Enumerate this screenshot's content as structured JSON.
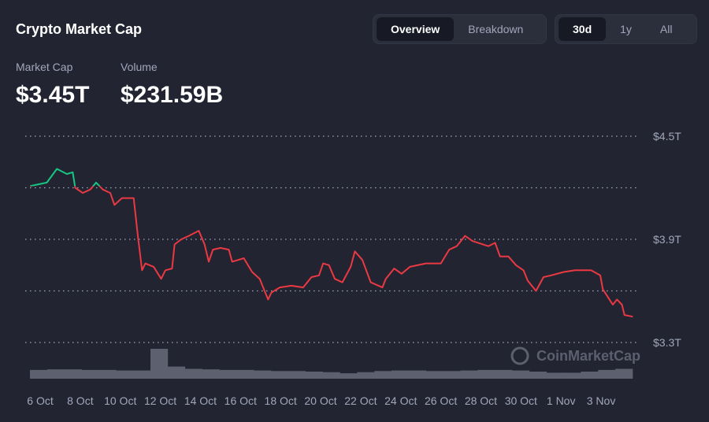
{
  "header": {
    "title": "Crypto Market Cap"
  },
  "view_toggle": {
    "options": [
      "Overview",
      "Breakdown"
    ],
    "active": "Overview"
  },
  "range_toggle": {
    "options": [
      "30d",
      "1y",
      "All"
    ],
    "active": "30d"
  },
  "stats": {
    "market_cap_label": "Market Cap",
    "market_cap_value": "$3.45T",
    "volume_label": "Volume",
    "volume_value": "$231.59B"
  },
  "watermark": "CoinMarketCap",
  "colors": {
    "up": "#16c784",
    "down": "#ea3943",
    "volume": "#5d616f",
    "grid": "#a1a7bb"
  },
  "chart_data": {
    "type": "line",
    "ylim": [
      3.3,
      4.5
    ],
    "y_ticks": [
      3.3,
      3.6,
      3.9,
      4.2,
      4.5
    ],
    "y_tick_labels": [
      {
        "value": 4.5,
        "label": "$4.5T"
      },
      {
        "value": 3.9,
        "label": "$3.9T"
      },
      {
        "value": 3.3,
        "label": "$3.3T"
      }
    ],
    "grid": true,
    "baseline": 4.21,
    "x_tick_labels": [
      "6 Oct",
      "8 Oct",
      "10 Oct",
      "12 Oct",
      "14 Oct",
      "16 Oct",
      "18 Oct",
      "20 Oct",
      "22 Oct",
      "24 Oct",
      "26 Oct",
      "28 Oct",
      "30 Oct",
      "1 Nov",
      "3 Nov"
    ],
    "series": [
      {
        "values": [
          [
            "Oct 5 12:00",
            4.21
          ],
          [
            "Oct 6 08:00",
            4.23
          ],
          [
            "Oct 6 20:00",
            4.31
          ],
          [
            "Oct 7 08:00",
            4.28
          ],
          [
            "Oct 7 15:00",
            4.29
          ],
          [
            "Oct 7 18:00",
            4.2
          ],
          [
            "Oct 8 03:00",
            4.17
          ],
          [
            "Oct 8 12:00",
            4.19
          ],
          [
            "Oct 8 19:00",
            4.23
          ],
          [
            "Oct 9 03:00",
            4.19
          ],
          [
            "Oct 9 12:00",
            4.17
          ],
          [
            "Oct 9 17:00",
            4.1
          ],
          [
            "Oct 10 02:00",
            4.14
          ],
          [
            "Oct 10 16:00",
            4.14
          ],
          [
            "Oct 10 21:00",
            3.92
          ],
          [
            "Oct 11 02:00",
            3.72
          ],
          [
            "Oct 11 06:00",
            3.76
          ],
          [
            "Oct 11 16:00",
            3.74
          ],
          [
            "Oct 12 01:00",
            3.67
          ],
          [
            "Oct 12 06:00",
            3.72
          ],
          [
            "Oct 12 14:00",
            3.73
          ],
          [
            "Oct 12 17:00",
            3.87
          ],
          [
            "Oct 13 01:00",
            3.9
          ],
          [
            "Oct 13 10:00",
            3.92
          ],
          [
            "Oct 13 22:00",
            3.95
          ],
          [
            "Oct 14 05:00",
            3.87
          ],
          [
            "Oct 14 10:00",
            3.77
          ],
          [
            "Oct 14 15:00",
            3.84
          ],
          [
            "Oct 15 00:00",
            3.85
          ],
          [
            "Oct 15 10:00",
            3.84
          ],
          [
            "Oct 15 14:00",
            3.77
          ],
          [
            "Oct 16 04:00",
            3.79
          ],
          [
            "Oct 16 14:00",
            3.71
          ],
          [
            "Oct 16 23:00",
            3.67
          ],
          [
            "Oct 17 09:00",
            3.55
          ],
          [
            "Oct 17 13:00",
            3.59
          ],
          [
            "Oct 17 23:00",
            3.62
          ],
          [
            "Oct 18 13:00",
            3.63
          ],
          [
            "Oct 19 03:00",
            3.62
          ],
          [
            "Oct 19 13:00",
            3.68
          ],
          [
            "Oct 19 22:00",
            3.69
          ],
          [
            "Oct 20 03:00",
            3.76
          ],
          [
            "Oct 20 10:00",
            3.75
          ],
          [
            "Oct 20 17:00",
            3.67
          ],
          [
            "Oct 21 02:00",
            3.65
          ],
          [
            "Oct 21 12:00",
            3.74
          ],
          [
            "Oct 21 17:00",
            3.83
          ],
          [
            "Oct 22 02:00",
            3.78
          ],
          [
            "Oct 22 12:00",
            3.65
          ],
          [
            "Oct 23 02:00",
            3.62
          ],
          [
            "Oct 23 06:00",
            3.67
          ],
          [
            "Oct 23 16:00",
            3.73
          ],
          [
            "Oct 24 01:00",
            3.7
          ],
          [
            "Oct 24 11:00",
            3.74
          ],
          [
            "Oct 25 06:00",
            3.76
          ],
          [
            "Oct 26 00:00",
            3.76
          ],
          [
            "Oct 26 10:00",
            3.84
          ],
          [
            "Oct 26 19:00",
            3.86
          ],
          [
            "Oct 27 05:00",
            3.92
          ],
          [
            "Oct 27 14:00",
            3.89
          ],
          [
            "Oct 28 09:00",
            3.86
          ],
          [
            "Oct 28 17:00",
            3.88
          ],
          [
            "Oct 28 23:00",
            3.8
          ],
          [
            "Oct 29 09:00",
            3.8
          ],
          [
            "Oct 29 18:00",
            3.75
          ],
          [
            "Oct 30 03:00",
            3.72
          ],
          [
            "Oct 30 08:00",
            3.66
          ],
          [
            "Oct 30 18:00",
            3.6
          ],
          [
            "Oct 31 03:00",
            3.68
          ],
          [
            "Oct 31 12:00",
            3.69
          ],
          [
            "Nov 1 03:00",
            3.71
          ],
          [
            "Nov 1 17:00",
            3.72
          ],
          [
            "Nov 2 12:00",
            3.72
          ],
          [
            "Nov 2 23:00",
            3.69
          ],
          [
            "Nov 3 02:00",
            3.61
          ],
          [
            "Nov 3 14:00",
            3.52
          ],
          [
            "Nov 3 19:00",
            3.55
          ],
          [
            "Nov 4 01:00",
            3.52
          ],
          [
            "Nov 4 04:00",
            3.46
          ],
          [
            "Nov 4 14:00",
            3.45
          ]
        ]
      }
    ],
    "volume_relative": [
      0.5,
      0.55,
      0.55,
      0.5,
      0.5,
      0.45,
      0.45,
      1.0,
      0.8,
      0.6,
      0.55,
      0.5,
      0.5,
      0.45,
      0.4,
      0.4,
      0.35,
      0.3,
      0.2,
      0.3,
      0.4,
      0.45,
      0.45,
      0.4,
      0.4,
      0.45,
      0.5,
      0.5,
      0.45,
      0.35,
      0.25,
      0.25,
      0.35,
      0.5,
      0.6
    ]
  }
}
